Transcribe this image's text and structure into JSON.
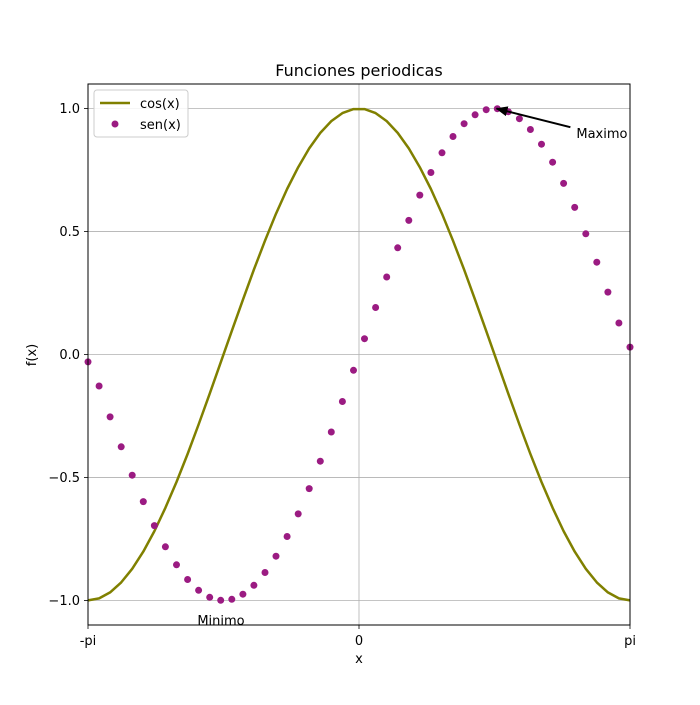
{
  "chart_data": {
    "type": "line",
    "title": "Funciones periodicas",
    "xlabel": "x",
    "ylabel": "f(x)",
    "xlim": [
      -3.14159,
      3.14159
    ],
    "ylim": [
      -1.1,
      1.1
    ],
    "xticks": [
      {
        "value": -3.14159,
        "label": "-pi"
      },
      {
        "value": 0,
        "label": "0"
      },
      {
        "value": 3.14159,
        "label": "pi"
      }
    ],
    "yticks": [
      {
        "value": -1.0,
        "label": "−1.0"
      },
      {
        "value": -0.5,
        "label": "−0.5"
      },
      {
        "value": 0.0,
        "label": "0.0"
      },
      {
        "value": 0.5,
        "label": "0.5"
      },
      {
        "value": 1.0,
        "label": "1.0"
      }
    ],
    "grid": true,
    "legend_position": "top-left",
    "series": [
      {
        "name": "cos(x)",
        "style": "line",
        "color": "#808000",
        "x": [
          -3.1416,
          -3.0134,
          -2.8851,
          -2.7569,
          -2.6287,
          -2.5005,
          -2.3722,
          -2.244,
          -2.1158,
          -1.9875,
          -1.8593,
          -1.7311,
          -1.6029,
          -1.4746,
          -1.3464,
          -1.2182,
          -1.0899,
          -0.9617,
          -0.8335,
          -0.7053,
          -0.577,
          -0.4488,
          -0.3206,
          -0.1923,
          -0.0641,
          0.0641,
          0.1923,
          0.3206,
          0.4488,
          0.577,
          0.7053,
          0.8335,
          0.9617,
          1.0899,
          1.2182,
          1.3464,
          1.4746,
          1.6029,
          1.7311,
          1.8593,
          1.9875,
          2.1158,
          2.244,
          2.3722,
          2.5005,
          2.6287,
          2.7569,
          2.8851,
          3.0134,
          3.1416
        ],
        "values": [
          -1.0,
          -0.9918,
          -0.9673,
          -0.9269,
          -0.8713,
          -0.8014,
          -0.7183,
          -0.6235,
          -0.5184,
          -0.4048,
          -0.2845,
          -0.1596,
          -0.0321,
          0.096,
          0.2225,
          0.3453,
          0.4626,
          0.5724,
          0.6729,
          0.7617,
          0.8382,
          0.901,
          0.949,
          0.9816,
          0.9979,
          0.9979,
          0.9816,
          0.949,
          0.901,
          0.8382,
          0.7617,
          0.6729,
          0.5724,
          0.4626,
          0.3453,
          0.2225,
          0.096,
          -0.0321,
          -0.1596,
          -0.2845,
          -0.4048,
          -0.5184,
          -0.6235,
          -0.7183,
          -0.8014,
          -0.8713,
          -0.9269,
          -0.9673,
          -0.9918,
          -1.0
        ]
      },
      {
        "name": "sen(x)",
        "style": "markers",
        "color": "#9b1b82",
        "x": [
          -3.1416,
          -3.0134,
          -2.8851,
          -2.7569,
          -2.6287,
          -2.5005,
          -2.3722,
          -2.244,
          -2.1158,
          -1.9875,
          -1.8593,
          -1.7311,
          -1.6029,
          -1.4746,
          -1.3464,
          -1.2182,
          -1.0899,
          -0.9617,
          -0.8335,
          -0.7053,
          -0.577,
          -0.4488,
          -0.3206,
          -0.1923,
          -0.0641,
          0.0641,
          0.1923,
          0.3206,
          0.4488,
          0.577,
          0.7053,
          0.8335,
          0.9617,
          1.0899,
          1.2182,
          1.3464,
          1.4746,
          1.6029,
          1.7311,
          1.8593,
          1.9875,
          2.1158,
          2.244,
          2.3722,
          2.5005,
          2.6287,
          2.7569,
          2.8851,
          3.0134,
          3.1416
        ],
        "values": [
          -0.03,
          -0.1279,
          -0.2537,
          -0.3752,
          -0.4907,
          -0.5982,
          -0.6959,
          -0.7818,
          -0.8551,
          -0.9148,
          -0.9587,
          -0.9872,
          -0.9995,
          -0.9954,
          -0.9749,
          -0.9384,
          -0.8866,
          -0.8204,
          -0.7403,
          -0.6482,
          -0.5455,
          -0.4339,
          -0.3151,
          -0.1911,
          -0.0641,
          0.0641,
          0.1911,
          0.3151,
          0.4339,
          0.5455,
          0.6482,
          0.7403,
          0.8204,
          0.8866,
          0.9384,
          0.9749,
          0.9954,
          0.9995,
          0.9872,
          0.9587,
          0.9148,
          0.8551,
          0.7818,
          0.6959,
          0.5982,
          0.4907,
          0.3752,
          0.2537,
          0.1279,
          0.03
        ]
      }
    ],
    "annotations": [
      {
        "text": "Maximo",
        "xy": [
          1.5708,
          1.0
        ],
        "xytext": [
          2.52,
          0.9
        ],
        "arrow": true
      },
      {
        "text": "Minimo",
        "xy": [
          -1.6,
          -1.08
        ],
        "arrow": false
      }
    ]
  }
}
